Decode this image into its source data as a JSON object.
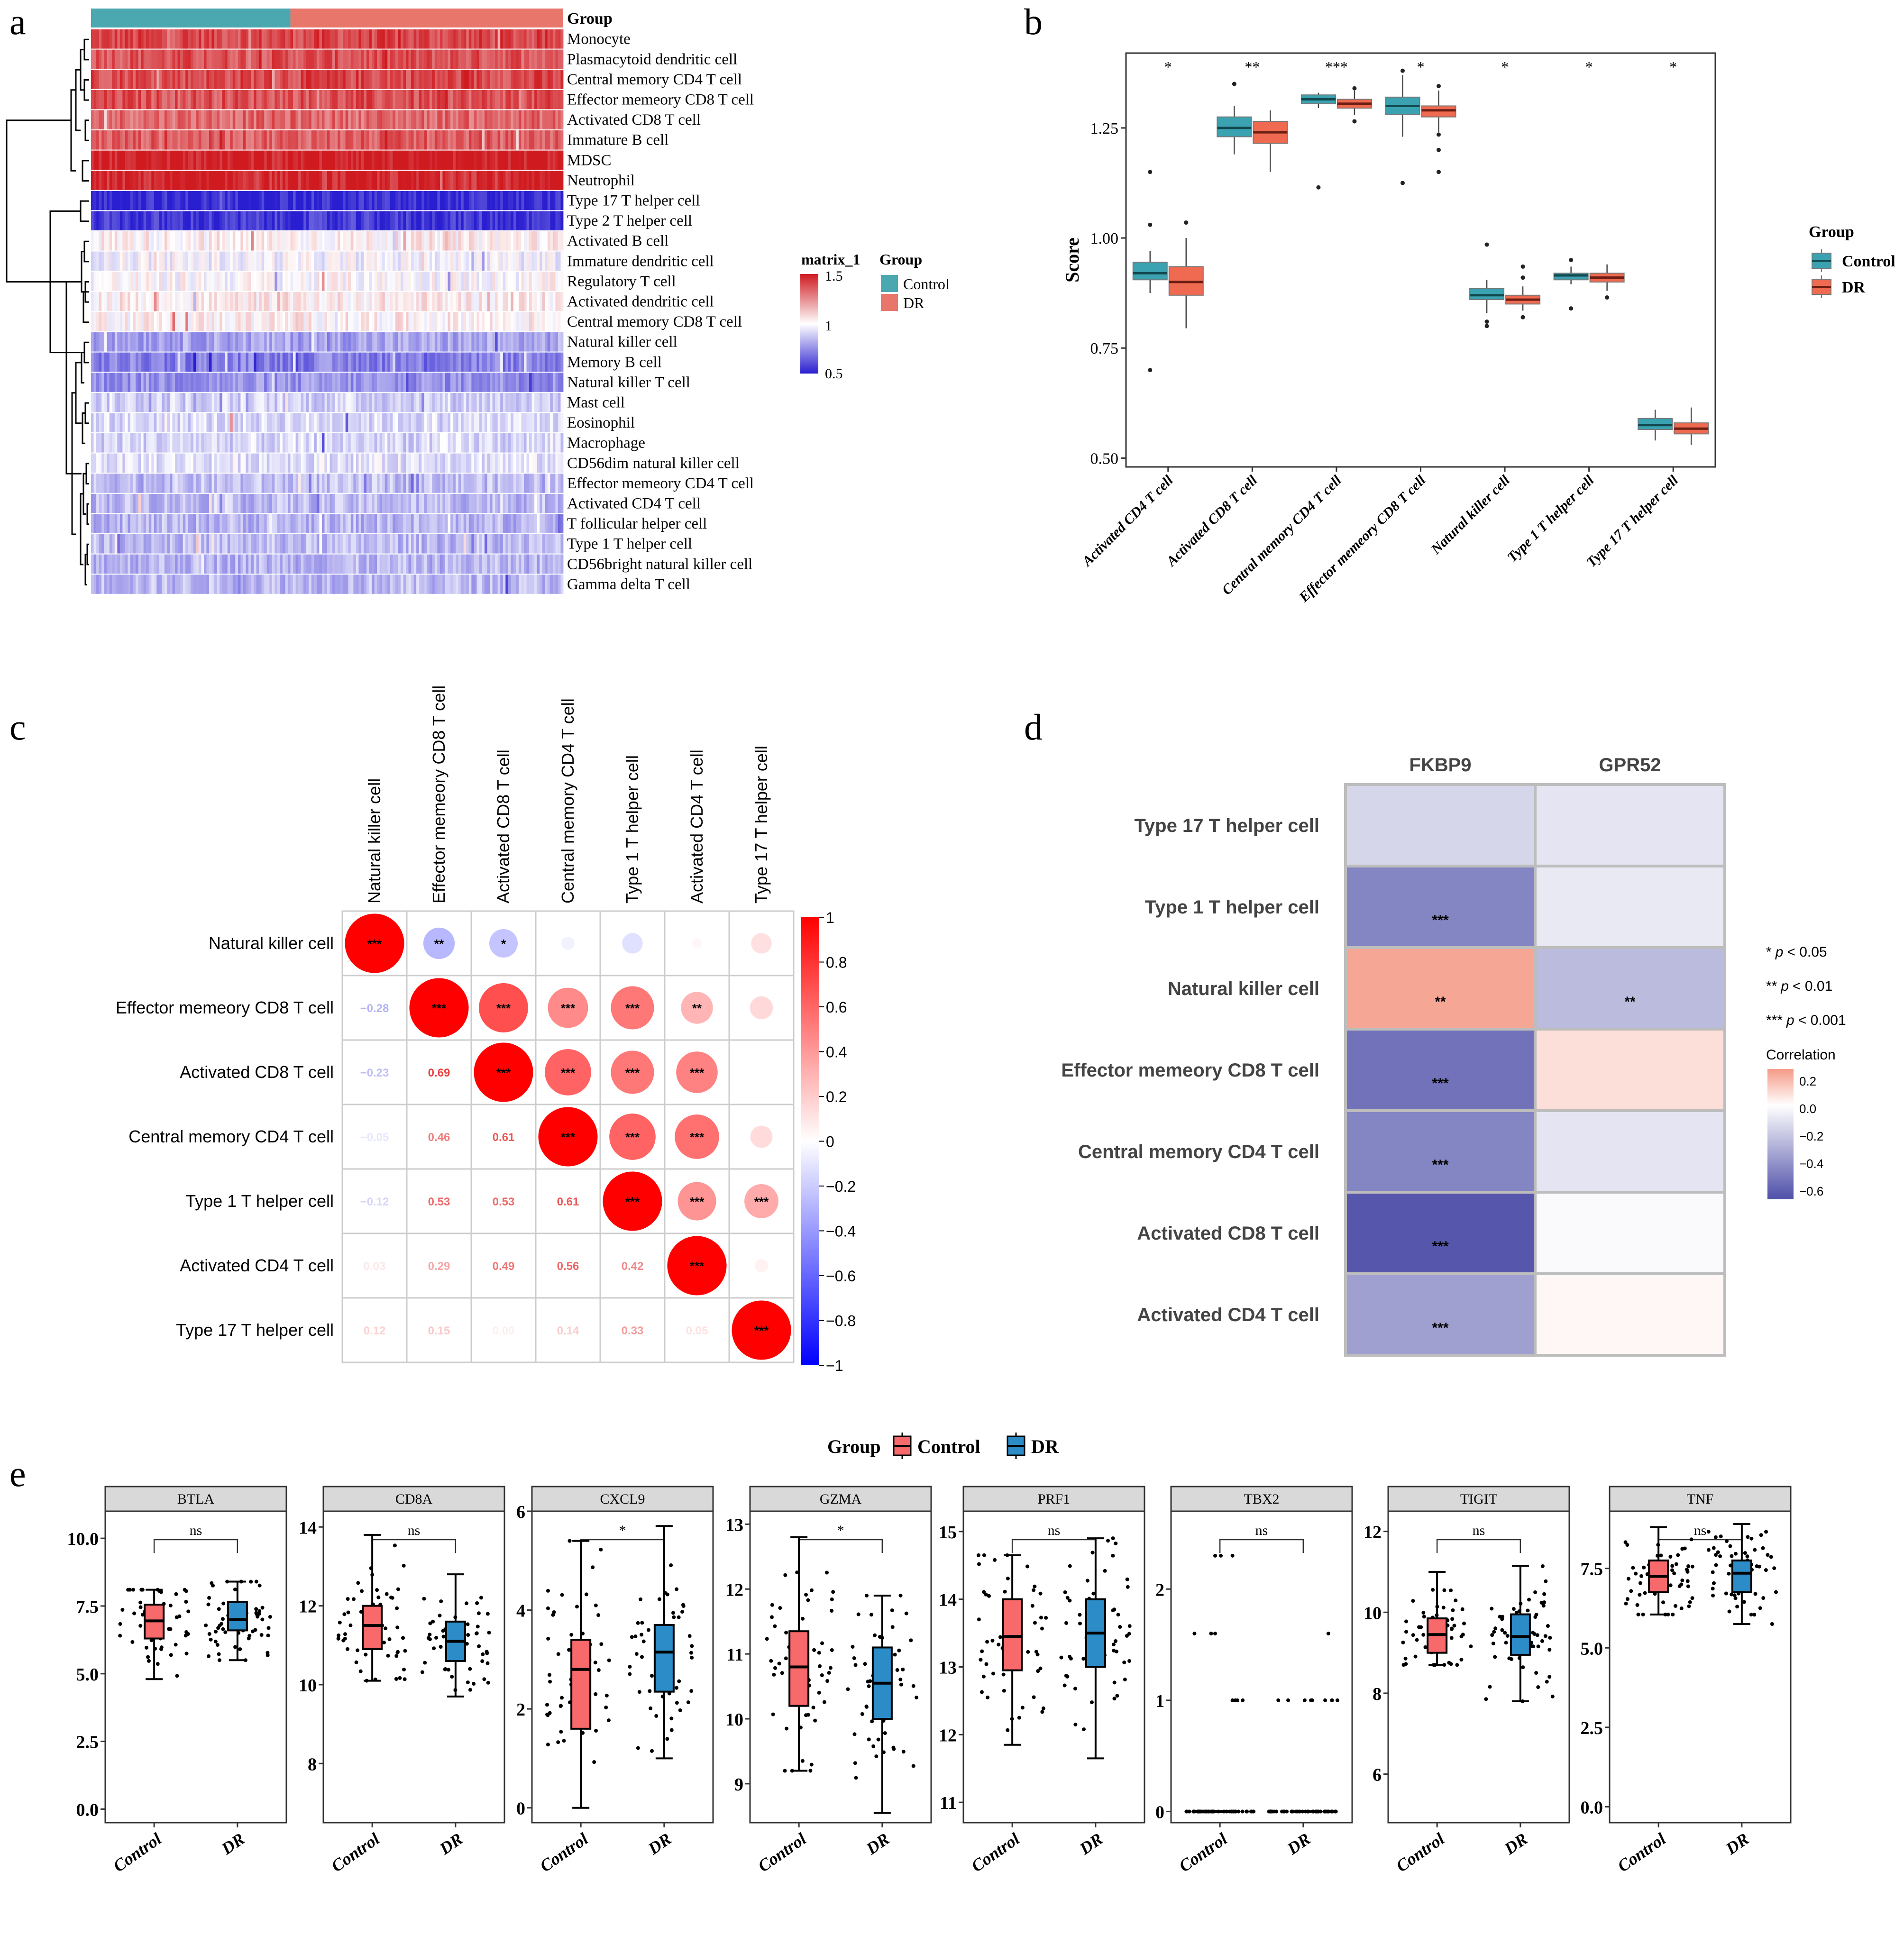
{
  "panels": {
    "a": "a",
    "b": "b",
    "c": "c",
    "d": "d",
    "e": "e"
  },
  "chart_data": [
    {
      "id": "a",
      "type": "heatmap",
      "title": "",
      "group_bar_label": "Group",
      "groups": [
        {
          "name": "Control",
          "color": "#4BA8B0",
          "fraction": 0.42
        },
        {
          "name": "DR",
          "color": "#E8766A",
          "fraction": 0.58
        }
      ],
      "rows": [
        {
          "label": "Monocyte",
          "mean": 1.4
        },
        {
          "label": "Plasmacytoid dendritic cell",
          "mean": 1.38
        },
        {
          "label": "Central memory CD4 T cell",
          "mean": 1.4
        },
        {
          "label": "Effector memeory CD8 T cell",
          "mean": 1.38
        },
        {
          "label": "Activated CD8 T cell",
          "mean": 1.33
        },
        {
          "label": "Immature  B cell",
          "mean": 1.35
        },
        {
          "label": "MDSC",
          "mean": 1.5
        },
        {
          "label": "Neutrophil",
          "mean": 1.47
        },
        {
          "label": "Type 17 T helper cell",
          "mean": 0.52
        },
        {
          "label": "Type 2 T helper cell",
          "mean": 0.55
        },
        {
          "label": "Activated B cell",
          "mean": 1.03
        },
        {
          "label": "Immature dendritic cell",
          "mean": 0.98
        },
        {
          "label": "Regulatory T cell",
          "mean": 1.0
        },
        {
          "label": "Activated dendritic cell",
          "mean": 1.04
        },
        {
          "label": "Central memory CD8 T cell",
          "mean": 1.03
        },
        {
          "label": "Natural killer cell",
          "mean": 0.8
        },
        {
          "label": "Memory B cell",
          "mean": 0.72
        },
        {
          "label": "Natural killer T cell",
          "mean": 0.76
        },
        {
          "label": "Mast cell",
          "mean": 0.9
        },
        {
          "label": "Eosinophil",
          "mean": 0.92
        },
        {
          "label": "Macrophage",
          "mean": 0.91
        },
        {
          "label": "CD56dim natural killer cell",
          "mean": 0.94
        },
        {
          "label": "Effector memeory CD4 T cell",
          "mean": 0.86
        },
        {
          "label": "Activated CD4 T cell",
          "mean": 0.85
        },
        {
          "label": "T follicular helper cell",
          "mean": 0.84
        },
        {
          "label": "Type 1 T helper cell",
          "mean": 0.85
        },
        {
          "label": "CD56bright natural killer cell",
          "mean": 0.84
        },
        {
          "label": "Gamma delta T cell",
          "mean": 0.85
        }
      ],
      "colorbar": {
        "title": "matrix_1",
        "ticks": [
          "1.5",
          "1",
          "0.5"
        ],
        "range": [
          0.5,
          1.5
        ],
        "low": "#2A1FD0",
        "mid": "#FFFFFF",
        "high": "#CF1A20"
      },
      "legend": {
        "title": "Group",
        "entries": [
          {
            "label": "Control",
            "color": "#4BA8B0"
          },
          {
            "label": "DR",
            "color": "#E8766A"
          }
        ]
      }
    },
    {
      "id": "b",
      "type": "box",
      "ylabel": "Score",
      "ylim": [
        0.48,
        1.42
      ],
      "yticks": [
        "0.50",
        "0.75",
        "1.00",
        "1.25"
      ],
      "yticks_values": [
        0.5,
        0.75,
        1.0,
        1.25
      ],
      "categories": [
        "Activated CD4 T cell",
        "Activated CD8 T cell",
        "Central memory CD4 T cell",
        "Effector memeory CD8 T cell",
        "Natural killer cell",
        "Type 1 T helper cell",
        "Type 17 T helper cell"
      ],
      "significance": [
        "*",
        "**",
        "***",
        "*",
        "*",
        "*",
        "*"
      ],
      "legend": {
        "title": "Group",
        "entries": [
          {
            "label": "Control",
            "color": "#3AA2B0"
          },
          {
            "label": "DR",
            "color": "#EF6A50"
          }
        ]
      },
      "series": [
        {
          "name": "Control",
          "boxes": [
            {
              "q1": 0.905,
              "median": 0.92,
              "q3": 0.945,
              "wlo": 0.875,
              "whi": 0.97,
              "outliers": [
                1.15,
                1.03,
                0.7
              ]
            },
            {
              "q1": 1.23,
              "median": 1.25,
              "q3": 1.275,
              "wlo": 1.19,
              "whi": 1.3,
              "outliers": [
                1.35
              ]
            },
            {
              "q1": 1.305,
              "median": 1.315,
              "q3": 1.325,
              "wlo": 1.295,
              "whi": 1.33,
              "outliers": [
                1.115
              ]
            },
            {
              "q1": 1.28,
              "median": 1.3,
              "q3": 1.32,
              "wlo": 1.23,
              "whi": 1.37,
              "outliers": [
                1.38,
                1.125
              ]
            },
            {
              "q1": 0.86,
              "median": 0.87,
              "q3": 0.885,
              "wlo": 0.83,
              "whi": 0.905,
              "outliers": [
                0.985,
                0.81,
                0.8
              ]
            },
            {
              "q1": 0.905,
              "median": 0.915,
              "q3": 0.92,
              "wlo": 0.895,
              "whi": 0.935,
              "outliers": [
                0.95,
                0.84
              ]
            },
            {
              "q1": 0.565,
              "median": 0.575,
              "q3": 0.59,
              "wlo": 0.54,
              "whi": 0.61,
              "outliers": []
            }
          ]
        },
        {
          "name": "DR",
          "boxes": [
            {
              "q1": 0.87,
              "median": 0.9,
              "q3": 0.935,
              "wlo": 0.795,
              "whi": 1.0,
              "outliers": [
                1.035
              ]
            },
            {
              "q1": 1.215,
              "median": 1.24,
              "q3": 1.265,
              "wlo": 1.15,
              "whi": 1.29,
              "outliers": []
            },
            {
              "q1": 1.295,
              "median": 1.305,
              "q3": 1.315,
              "wlo": 1.28,
              "whi": 1.335,
              "outliers": [
                1.34,
                1.265
              ]
            },
            {
              "q1": 1.275,
              "median": 1.29,
              "q3": 1.3,
              "wlo": 1.24,
              "whi": 1.335,
              "outliers": [
                1.345,
                1.235,
                1.2,
                1.15
              ]
            },
            {
              "q1": 0.85,
              "median": 0.86,
              "q3": 0.87,
              "wlo": 0.835,
              "whi": 0.89,
              "outliers": [
                0.935,
                0.91,
                0.82
              ]
            },
            {
              "q1": 0.9,
              "median": 0.91,
              "q3": 0.92,
              "wlo": 0.88,
              "whi": 0.94,
              "outliers": [
                0.865
              ]
            },
            {
              "q1": 0.555,
              "median": 0.567,
              "q3": 0.58,
              "wlo": 0.53,
              "whi": 0.615,
              "outliers": []
            }
          ]
        }
      ]
    },
    {
      "id": "c",
      "type": "heatmap",
      "subtype": "correlogram",
      "labels": [
        "Natural killer cell",
        "Effector memeory CD8 T cell",
        "Activated CD8 T cell",
        "Central memory CD4 T cell",
        "Type 1 T helper cell",
        "Activated CD4 T cell",
        "Type 17 T helper cell"
      ],
      "matrix": [
        [
          1.0,
          -0.28,
          -0.23,
          -0.05,
          -0.12,
          0.03,
          0.12
        ],
        [
          -0.28,
          1.0,
          0.69,
          0.46,
          0.53,
          0.29,
          0.15
        ],
        [
          -0.23,
          0.69,
          1.0,
          0.61,
          0.53,
          0.49,
          0.0
        ],
        [
          -0.05,
          0.46,
          0.61,
          1.0,
          0.61,
          0.56,
          0.14
        ],
        [
          -0.12,
          0.53,
          0.53,
          0.61,
          1.0,
          0.42,
          0.33
        ],
        [
          0.03,
          0.29,
          0.49,
          0.56,
          0.42,
          1.0,
          0.05
        ],
        [
          0.12,
          0.15,
          0.0,
          0.14,
          0.33,
          0.05,
          1.0
        ]
      ],
      "lower_labels": [
        [
          "",
          "",
          "",
          "",
          "",
          "",
          ""
        ],
        [
          "−0.28",
          "",
          "",
          "",
          "",
          "",
          ""
        ],
        [
          "−0.23",
          "0.69",
          "",
          "",
          "",
          "",
          ""
        ],
        [
          "−0.05",
          "0.46",
          "0.61",
          "",
          "",
          "",
          ""
        ],
        [
          "−0.12",
          "0.53",
          "0.53",
          "0.61",
          "",
          "",
          ""
        ],
        [
          "0.03",
          "0.29",
          "0.49",
          "0.56",
          "0.42",
          "",
          ""
        ],
        [
          "0.12",
          "0.15",
          "0.00",
          "0.14",
          "0.33",
          "0.05",
          ""
        ]
      ],
      "upper_stars": [
        [
          "***",
          "**",
          "*",
          "",
          "",
          "",
          ""
        ],
        [
          "",
          "***",
          "***",
          "***",
          "***",
          "**",
          ""
        ],
        [
          "",
          "",
          "***",
          "***",
          "***",
          "***",
          ""
        ],
        [
          "",
          "",
          "",
          "***",
          "***",
          "***",
          ""
        ],
        [
          "",
          "",
          "",
          "",
          "***",
          "***",
          "***"
        ],
        [
          "",
          "",
          "",
          "",
          "",
          "***",
          ""
        ],
        [
          "",
          "",
          "",
          "",
          "",
          "",
          "***"
        ]
      ],
      "colorbar": {
        "ticks": [
          "1",
          "0.8",
          "0.6",
          "0.4",
          "0.2",
          "0",
          "−0.2",
          "−0.4",
          "−0.6",
          "−0.8",
          "−1"
        ],
        "range": [
          -1,
          1
        ]
      }
    },
    {
      "id": "d",
      "type": "heatmap",
      "columns": [
        "FKBP9",
        "GPR52"
      ],
      "rows": [
        "Type 17 T helper cell",
        "Type 1 T helper cell",
        "Natural killer cell",
        "Effector memeory CD8 T cell",
        "Central memory CD4 T cell",
        "Activated CD8 T cell",
        "Activated CD4 T cell"
      ],
      "values": [
        [
          -0.15,
          -0.1
        ],
        [
          -0.45,
          -0.08
        ],
        [
          0.22,
          -0.25
        ],
        [
          -0.52,
          0.08
        ],
        [
          -0.45,
          -0.1
        ],
        [
          -0.62,
          -0.02
        ],
        [
          -0.35,
          0.02
        ]
      ],
      "stars": [
        [
          "",
          ""
        ],
        [
          "***",
          ""
        ],
        [
          "**",
          "**"
        ],
        [
          "***",
          ""
        ],
        [
          "***",
          ""
        ],
        [
          "***",
          ""
        ],
        [
          "***",
          ""
        ]
      ],
      "sig_legend": [
        {
          "stars": "*",
          "text": "p",
          "thresh": "< 0.05"
        },
        {
          "stars": "**",
          "text": "p",
          "thresh": "< 0.01"
        },
        {
          "stars": "***",
          "text": "p",
          "thresh": "< 0.001"
        }
      ],
      "colorbar": {
        "title": "Correlation",
        "ticks": [
          "0.2",
          "0.0",
          "−0.2",
          "−0.4",
          "−0.6"
        ],
        "range": [
          -0.65,
          0.25
        ]
      }
    },
    {
      "id": "e",
      "type": "box",
      "legend": {
        "title": "Group",
        "entries": [
          {
            "label": "Control",
            "color": "#F8696B"
          },
          {
            "label": "DR",
            "color": "#2C8CC8"
          }
        ]
      },
      "categories": [
        "Control",
        "DR"
      ],
      "facets": [
        {
          "gene": "BTLA",
          "sig": "ns",
          "ylim": [
            -0.5,
            11.0
          ],
          "yticks": [
            "0.0",
            "2.5",
            "5.0",
            "7.5",
            "10.0"
          ],
          "yvals": [
            0,
            2.5,
            5,
            7.5,
            10
          ],
          "control": {
            "q1": 6.3,
            "median": 6.95,
            "q3": 7.55,
            "wlo": 4.8,
            "whi": 8.1
          },
          "dr": {
            "q1": 6.6,
            "median": 7.0,
            "q3": 7.65,
            "wlo": 5.5,
            "whi": 8.4
          }
        },
        {
          "gene": "CD8A",
          "sig": "ns",
          "ylim": [
            6.5,
            14.4
          ],
          "yticks": [
            "8",
            "10",
            "12",
            "14"
          ],
          "yvals": [
            8,
            10,
            12,
            14
          ],
          "control": {
            "q1": 10.9,
            "median": 11.5,
            "q3": 12.0,
            "wlo": 10.1,
            "whi": 13.8
          },
          "dr": {
            "q1": 10.6,
            "median": 11.1,
            "q3": 11.6,
            "wlo": 9.7,
            "whi": 12.8
          }
        },
        {
          "gene": "CXCL9",
          "sig": "*",
          "ylim": [
            -0.3,
            6.0
          ],
          "yticks": [
            "0",
            "2",
            "4",
            "6"
          ],
          "yvals": [
            0,
            2,
            4,
            6
          ],
          "control": {
            "q1": 1.6,
            "median": 2.8,
            "q3": 3.4,
            "wlo": 0.0,
            "whi": 5.4
          },
          "dr": {
            "q1": 2.35,
            "median": 3.15,
            "q3": 3.7,
            "wlo": 1.0,
            "whi": 5.7
          }
        },
        {
          "gene": "GZMA",
          "sig": "*",
          "ylim": [
            8.4,
            13.2
          ],
          "yticks": [
            "9",
            "10",
            "11",
            "12",
            "13"
          ],
          "yvals": [
            9,
            10,
            11,
            12,
            13
          ],
          "control": {
            "q1": 10.2,
            "median": 10.8,
            "q3": 11.35,
            "wlo": 9.2,
            "whi": 12.8
          },
          "dr": {
            "q1": 10.0,
            "median": 10.55,
            "q3": 11.1,
            "wlo": 8.55,
            "whi": 11.9
          }
        },
        {
          "gene": "PRF1",
          "sig": "ns",
          "ylim": [
            10.7,
            15.3
          ],
          "yticks": [
            "11",
            "12",
            "13",
            "14",
            "15"
          ],
          "yvals": [
            11,
            12,
            13,
            14,
            15
          ],
          "control": {
            "q1": 12.95,
            "median": 13.45,
            "q3": 14.0,
            "wlo": 11.85,
            "whi": 14.65
          },
          "dr": {
            "q1": 13.0,
            "median": 13.5,
            "q3": 14.0,
            "wlo": 11.65,
            "whi": 14.9
          }
        },
        {
          "gene": "TBX2",
          "sig": "ns",
          "ylim": [
            -0.1,
            2.7
          ],
          "yticks": [
            "0",
            "1",
            "2"
          ],
          "yvals": [
            0,
            1,
            2
          ],
          "control": {
            "q1": 0,
            "median": 0,
            "q3": 0,
            "wlo": 0,
            "whi": 0
          },
          "dr": {
            "q1": 0,
            "median": 0,
            "q3": 0,
            "wlo": 0,
            "whi": 0
          }
        },
        {
          "gene": "TIGIT",
          "sig": "ns",
          "ylim": [
            4.8,
            12.5
          ],
          "yticks": [
            "6",
            "8",
            "10",
            "12"
          ],
          "yvals": [
            6,
            8,
            10,
            12
          ],
          "control": {
            "q1": 9.0,
            "median": 9.45,
            "q3": 9.85,
            "wlo": 8.7,
            "whi": 11.0
          },
          "dr": {
            "q1": 8.95,
            "median": 9.4,
            "q3": 9.95,
            "wlo": 7.8,
            "whi": 11.15
          }
        },
        {
          "gene": "TNF",
          "sig": "ns",
          "ylim": [
            -0.5,
            9.3
          ],
          "yticks": [
            "0.0",
            "2.5",
            "5.0",
            "7.5"
          ],
          "yvals": [
            0,
            2.5,
            5,
            7.5
          ],
          "control": {
            "q1": 6.75,
            "median": 7.25,
            "q3": 7.75,
            "wlo": 6.05,
            "whi": 8.8
          },
          "dr": {
            "q1": 6.75,
            "median": 7.35,
            "q3": 7.75,
            "wlo": 5.75,
            "whi": 8.9
          }
        }
      ]
    }
  ]
}
